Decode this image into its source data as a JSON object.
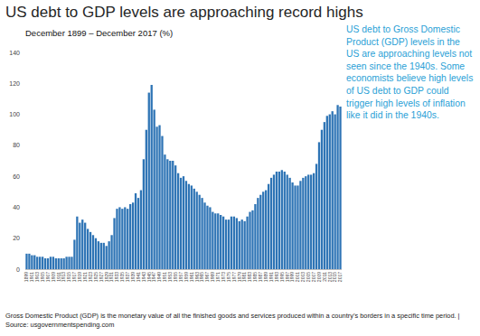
{
  "chart_data": {
    "type": "bar",
    "title": "US debt to GDP levels are approaching record highs",
    "subtitle": "December 1899 – December 2017 (%)",
    "annotation": "US debt to Gross Domestic Product (GDP) levels in the US are approaching levels not seen since the 1940s. Some economists believe high levels of US debt to GDP could trigger high levels of inflation like it did in the 1940s.",
    "footnote": "Gross Domestic Product (GDP) is the monetary value of all the finished goods and services produced within a country’s borders in a specific time period. | Source: usgovernmentspending.com",
    "categories": [
      "1899",
      null,
      "1901",
      null,
      "1903",
      null,
      "1905",
      null,
      "1907",
      null,
      "1909",
      null,
      "1911",
      null,
      "1913",
      null,
      "1915",
      null,
      "1917",
      null,
      "1919",
      null,
      "1921",
      null,
      "1923",
      null,
      "1925",
      null,
      "1927",
      null,
      "1929",
      null,
      "1931",
      null,
      "1933",
      null,
      "1935",
      null,
      "1937",
      null,
      "1939",
      null,
      "1941",
      null,
      "1943",
      null,
      "1945",
      null,
      "1947",
      null,
      "1949",
      null,
      "1951",
      null,
      "1953",
      null,
      "1955",
      null,
      "1957",
      null,
      "1959",
      null,
      "1961",
      null,
      "1963",
      null,
      "1965",
      null,
      "1967",
      null,
      "1969",
      null,
      "1971",
      null,
      "1973",
      null,
      "1975",
      null,
      "1977",
      null,
      "1979",
      null,
      "1981",
      null,
      "1983",
      null,
      "1985",
      null,
      "1987",
      null,
      "1989",
      null,
      "1991",
      null,
      "1993",
      null,
      "1995",
      null,
      "1997",
      null,
      "1999",
      null,
      "2001",
      null,
      "2003",
      null,
      "2005",
      null,
      "2007",
      null,
      "2009",
      null,
      "2011",
      null,
      "2013",
      null,
      "2015",
      null,
      "2017"
    ],
    "values": [
      10,
      10,
      9,
      9,
      8,
      8,
      8,
      7,
      7,
      8,
      8,
      7,
      7,
      7,
      7,
      8,
      8,
      8,
      19,
      34,
      30,
      32,
      30,
      26,
      24,
      22,
      20,
      18,
      17,
      17,
      15,
      18,
      22,
      33,
      39,
      40,
      39,
      40,
      39,
      42,
      43,
      49,
      46,
      51,
      71,
      90,
      114,
      119,
      103,
      92,
      93,
      86,
      74,
      71,
      70,
      70,
      67,
      62,
      59,
      60,
      57,
      55,
      54,
      52,
      50,
      48,
      46,
      43,
      41,
      40,
      37,
      36,
      36,
      35,
      34,
      32,
      32,
      34,
      34,
      33,
      31,
      32,
      31,
      34,
      37,
      38,
      42,
      46,
      48,
      50,
      51,
      55,
      59,
      61,
      63,
      63,
      64,
      63,
      61,
      59,
      56,
      54,
      54,
      57,
      59,
      60,
      61,
      61,
      62,
      68,
      82,
      90,
      95,
      99,
      100,
      102,
      100,
      106,
      105
    ],
    "color": "#2e74b5",
    "ylim": [
      0,
      140
    ],
    "yticks": [
      0,
      20,
      40,
      60,
      80,
      100,
      120,
      140
    ],
    "grid": false
  }
}
